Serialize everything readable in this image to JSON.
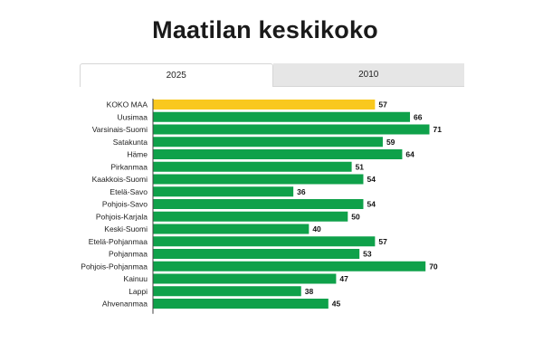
{
  "title": "Maatilan keskikoko",
  "tabs": [
    {
      "label": "2025",
      "active": true
    },
    {
      "label": "2010",
      "active": false
    }
  ],
  "colors": {
    "highlight": "#f9c81e",
    "bar": "#0fa14a",
    "axis": "#444444"
  },
  "chart_data": {
    "type": "bar",
    "orientation": "horizontal",
    "title": "Maatilan keskikoko",
    "categories": [
      "KOKO MAA",
      "Uusimaa",
      "Varsinais-Suomi",
      "Satakunta",
      "Häme",
      "Pirkanmaa",
      "Kaakkois-Suomi",
      "Etelä-Savo",
      "Pohjois-Savo",
      "Pohjois-Karjala",
      "Keski-Suomi",
      "Etelä-Pohjanmaa",
      "Pohjanmaa",
      "Pohjois-Pohjanmaa",
      "Kainuu",
      "Lappi",
      "Ahvenanmaa"
    ],
    "values": [
      57,
      66,
      71,
      59,
      64,
      51,
      54,
      36,
      54,
      50,
      40,
      57,
      53,
      70,
      47,
      38,
      45
    ],
    "highlight_category": "KOKO MAA",
    "data_labels": [
      "57",
      "66",
      "71",
      "59",
      "64",
      "51",
      "54",
      "36",
      "54",
      "50",
      "40",
      "57",
      "53",
      "70",
      "47",
      "38",
      "45"
    ],
    "xlim": [
      0,
      71
    ],
    "grid": false,
    "legend": "none"
  }
}
